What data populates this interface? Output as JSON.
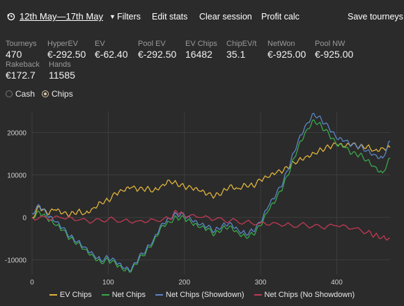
{
  "toolbar": {
    "date_range": "12th May—17th May",
    "filters": "Filters",
    "edit_stats": "Edit stats",
    "clear_session": "Clear session",
    "profit_calc": "Profit calc",
    "save_tourneys": "Save tourneys"
  },
  "stats": [
    {
      "label": "Tourneys",
      "value": "470"
    },
    {
      "label": "HyperEV",
      "value": "€-292.50"
    },
    {
      "label": "EV",
      "value": "€-62.40"
    },
    {
      "label": "Pool EV",
      "value": "€-292.50"
    },
    {
      "label": "EV Chips",
      "value": "16482"
    },
    {
      "label": "ChipEV/t",
      "value": "35.1"
    },
    {
      "label": "NetWon",
      "value": "€-925.00"
    },
    {
      "label": "Pool NW",
      "value": "€-925.00"
    },
    {
      "label": "Rakeback",
      "value": "€172.7"
    },
    {
      "label": "Hands",
      "value": "11585"
    }
  ],
  "view_toggle": {
    "options": [
      "Cash",
      "Chips"
    ],
    "selected": "Chips"
  },
  "colors": {
    "background": "#2b2b2b",
    "ev_chips": "#e0b43c",
    "net_chips": "#3aa84a",
    "net_chips_showdown": "#5b86c8",
    "net_chips_no_showdown": "#c23a55"
  },
  "chart_data": {
    "type": "line",
    "xlim": [
      0,
      470
    ],
    "ylim": [
      -13500,
      25000
    ],
    "x_ticks": [
      0,
      100,
      200,
      300,
      400
    ],
    "y_ticks": [
      -10000,
      0,
      10000,
      20000
    ],
    "grid": true,
    "legend": "bottom",
    "series": [
      {
        "name": "EV Chips",
        "color": "#e0b43c",
        "points": [
          [
            0,
            0
          ],
          [
            10,
            2500
          ],
          [
            20,
            800
          ],
          [
            30,
            1800
          ],
          [
            40,
            900
          ],
          [
            50,
            600
          ],
          [
            60,
            1500
          ],
          [
            70,
            1000
          ],
          [
            80,
            2200
          ],
          [
            90,
            3600
          ],
          [
            100,
            4000
          ],
          [
            110,
            5600
          ],
          [
            120,
            6200
          ],
          [
            130,
            7000
          ],
          [
            140,
            6500
          ],
          [
            150,
            6800
          ],
          [
            160,
            6400
          ],
          [
            170,
            7500
          ],
          [
            180,
            8800
          ],
          [
            190,
            8000
          ],
          [
            200,
            7200
          ],
          [
            210,
            6800
          ],
          [
            220,
            6200
          ],
          [
            230,
            5400
          ],
          [
            240,
            5000
          ],
          [
            250,
            6000
          ],
          [
            260,
            7600
          ],
          [
            270,
            6800
          ],
          [
            280,
            7800
          ],
          [
            290,
            7400
          ],
          [
            300,
            8800
          ],
          [
            310,
            9400
          ],
          [
            320,
            10400
          ],
          [
            330,
            11000
          ],
          [
            340,
            12400
          ],
          [
            350,
            13600
          ],
          [
            360,
            14400
          ],
          [
            370,
            15200
          ],
          [
            380,
            16000
          ],
          [
            390,
            16600
          ],
          [
            400,
            17200
          ],
          [
            410,
            16600
          ],
          [
            420,
            17200
          ],
          [
            430,
            16600
          ],
          [
            440,
            16800
          ],
          [
            450,
            15800
          ],
          [
            460,
            16400
          ],
          [
            470,
            16482
          ]
        ]
      },
      {
        "name": "Net Chips",
        "color": "#3aa84a",
        "points": [
          [
            0,
            0
          ],
          [
            10,
            1200
          ],
          [
            20,
            -400
          ],
          [
            30,
            -1800
          ],
          [
            40,
            -3000
          ],
          [
            50,
            -5000
          ],
          [
            60,
            -6000
          ],
          [
            70,
            -7500
          ],
          [
            80,
            -9000
          ],
          [
            90,
            -10500
          ],
          [
            100,
            -10000
          ],
          [
            110,
            -11000
          ],
          [
            120,
            -12500
          ],
          [
            130,
            -12800
          ],
          [
            140,
            -10000
          ],
          [
            150,
            -8000
          ],
          [
            160,
            -5500
          ],
          [
            170,
            -2000
          ],
          [
            180,
            -1000
          ],
          [
            190,
            0
          ],
          [
            200,
            -200
          ],
          [
            210,
            -1500
          ],
          [
            220,
            -2400
          ],
          [
            230,
            -2800
          ],
          [
            240,
            -4000
          ],
          [
            250,
            -2500
          ],
          [
            260,
            -2000
          ],
          [
            270,
            -3500
          ],
          [
            280,
            -4500
          ],
          [
            290,
            -4000
          ],
          [
            300,
            -2000
          ],
          [
            310,
            1500
          ],
          [
            320,
            4000
          ],
          [
            330,
            7500
          ],
          [
            340,
            12000
          ],
          [
            350,
            17000
          ],
          [
            360,
            20500
          ],
          [
            370,
            23000
          ],
          [
            380,
            21500
          ],
          [
            390,
            19500
          ],
          [
            400,
            17000
          ],
          [
            410,
            16500
          ],
          [
            420,
            15000
          ],
          [
            430,
            14800
          ],
          [
            440,
            13500
          ],
          [
            450,
            12000
          ],
          [
            460,
            10500
          ],
          [
            470,
            14000
          ]
        ]
      },
      {
        "name": "Net Chips (Showdown)",
        "color": "#5b86c8",
        "points": [
          [
            0,
            1000
          ],
          [
            10,
            2800
          ],
          [
            20,
            400
          ],
          [
            30,
            -1000
          ],
          [
            40,
            -2500
          ],
          [
            50,
            -4500
          ],
          [
            60,
            -5600
          ],
          [
            70,
            -7000
          ],
          [
            80,
            -8500
          ],
          [
            90,
            -10000
          ],
          [
            100,
            -9500
          ],
          [
            110,
            -10500
          ],
          [
            120,
            -12000
          ],
          [
            130,
            -12500
          ],
          [
            140,
            -9500
          ],
          [
            150,
            -7500
          ],
          [
            160,
            -5000
          ],
          [
            170,
            -1500
          ],
          [
            180,
            -200
          ],
          [
            190,
            800
          ],
          [
            200,
            500
          ],
          [
            210,
            -800
          ],
          [
            220,
            -1800
          ],
          [
            230,
            -2200
          ],
          [
            240,
            -3200
          ],
          [
            250,
            -1800
          ],
          [
            260,
            -1200
          ],
          [
            270,
            -2800
          ],
          [
            280,
            -3800
          ],
          [
            290,
            -3200
          ],
          [
            300,
            -1200
          ],
          [
            310,
            2500
          ],
          [
            320,
            5200
          ],
          [
            330,
            8500
          ],
          [
            340,
            13500
          ],
          [
            350,
            18500
          ],
          [
            360,
            22000
          ],
          [
            370,
            24500
          ],
          [
            380,
            23000
          ],
          [
            390,
            21000
          ],
          [
            400,
            18500
          ],
          [
            410,
            18000
          ],
          [
            420,
            17000
          ],
          [
            430,
            16800
          ],
          [
            440,
            15800
          ],
          [
            450,
            14800
          ],
          [
            460,
            14000
          ],
          [
            470,
            18000
          ]
        ]
      },
      {
        "name": "Net Chips (No Showdown)",
        "color": "#c23a55",
        "points": [
          [
            0,
            0
          ],
          [
            20,
            -300
          ],
          [
            40,
            -200
          ],
          [
            60,
            -700
          ],
          [
            80,
            -1000
          ],
          [
            100,
            -400
          ],
          [
            120,
            -700
          ],
          [
            140,
            -800
          ],
          [
            160,
            -500
          ],
          [
            180,
            -300
          ],
          [
            190,
            1400
          ],
          [
            200,
            300
          ],
          [
            220,
            0
          ],
          [
            240,
            -500
          ],
          [
            260,
            -800
          ],
          [
            280,
            -1100
          ],
          [
            300,
            -1300
          ],
          [
            320,
            -1300
          ],
          [
            340,
            -1800
          ],
          [
            360,
            -1800
          ],
          [
            380,
            -2400
          ],
          [
            400,
            -2000
          ],
          [
            420,
            -2700
          ],
          [
            440,
            -3500
          ],
          [
            450,
            -4200
          ],
          [
            460,
            -4600
          ],
          [
            470,
            -4900
          ]
        ]
      }
    ]
  }
}
